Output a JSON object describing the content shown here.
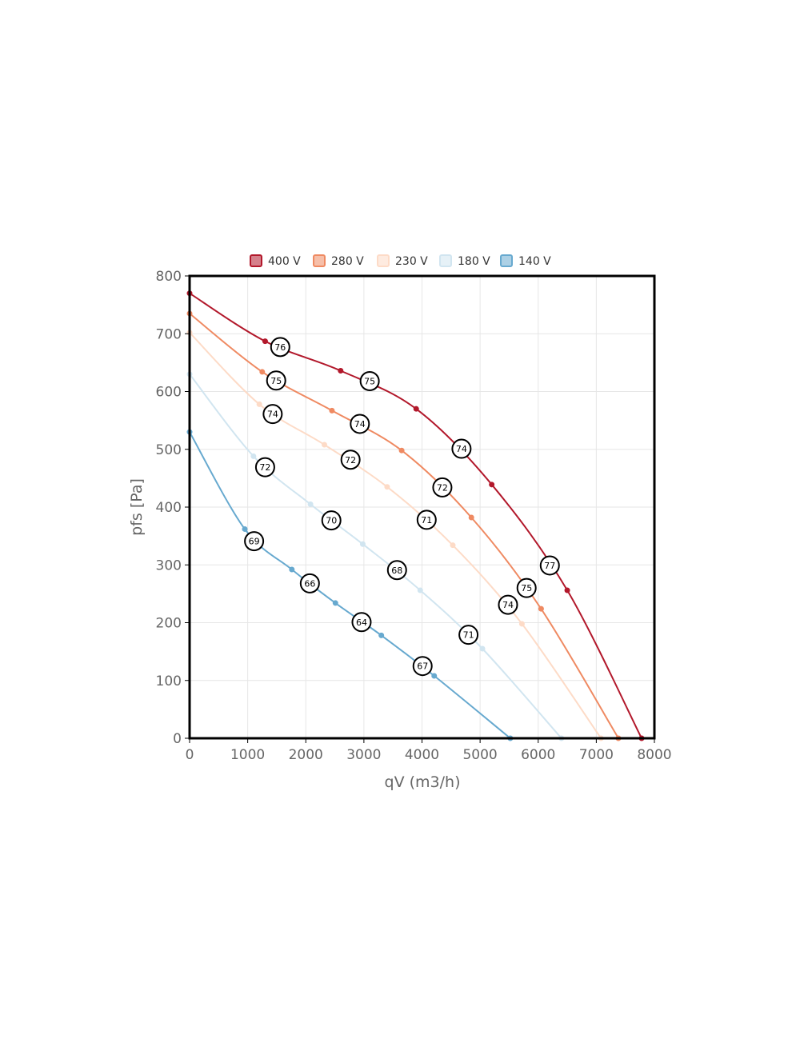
{
  "chart_data": {
    "type": "line",
    "title": "",
    "xlabel": "qV (m3/h)",
    "ylabel": "pfs [Pa]",
    "xlim": [
      0,
      8000
    ],
    "ylim": [
      0,
      800
    ],
    "xticks": [
      "0",
      "1000",
      "2000",
      "3000",
      "4000",
      "5000",
      "6000",
      "7000",
      "8000"
    ],
    "yticks": [
      "0",
      "100",
      "200",
      "300",
      "400",
      "500",
      "600",
      "700",
      "800"
    ],
    "grid": true,
    "legend_position": "top-center",
    "series": [
      {
        "name": "400 V",
        "color": "#b2182b",
        "points": [
          [
            0,
            770
          ],
          [
            1300,
            687
          ],
          [
            2600,
            636
          ],
          [
            3900,
            570
          ],
          [
            5200,
            439
          ],
          [
            6500,
            256
          ],
          [
            7780,
            0
          ]
        ],
        "labels": [
          {
            "x": 1560,
            "y": 677,
            "text": "76"
          },
          {
            "x": 3100,
            "y": 618,
            "text": "75"
          },
          {
            "x": 4680,
            "y": 501,
            "text": "74"
          },
          {
            "x": 6200,
            "y": 299,
            "text": "77"
          }
        ]
      },
      {
        "name": "280 V",
        "color": "#ef8a62",
        "points": [
          [
            0,
            735
          ],
          [
            1250,
            634
          ],
          [
            2450,
            567
          ],
          [
            3650,
            498
          ],
          [
            4850,
            382
          ],
          [
            6050,
            224
          ],
          [
            7380,
            0
          ]
        ],
        "labels": [
          {
            "x": 1490,
            "y": 619,
            "text": "75"
          },
          {
            "x": 2930,
            "y": 544,
            "text": "74"
          },
          {
            "x": 4350,
            "y": 434,
            "text": "72"
          },
          {
            "x": 5800,
            "y": 260,
            "text": "75"
          }
        ]
      },
      {
        "name": "230 V",
        "color": "#fddbc7",
        "points": [
          [
            0,
            702
          ],
          [
            1200,
            578
          ],
          [
            2320,
            508
          ],
          [
            3400,
            435
          ],
          [
            4530,
            334
          ],
          [
            5720,
            198
          ],
          [
            7080,
            0
          ]
        ],
        "labels": [
          {
            "x": 1430,
            "y": 561,
            "text": "74"
          },
          {
            "x": 2770,
            "y": 482,
            "text": "72"
          },
          {
            "x": 4080,
            "y": 378,
            "text": "71"
          },
          {
            "x": 5480,
            "y": 231,
            "text": "74"
          }
        ]
      },
      {
        "name": "180 V",
        "color": "#d1e5f0",
        "points": [
          [
            0,
            630
          ],
          [
            1100,
            488
          ],
          [
            2080,
            405
          ],
          [
            2980,
            336
          ],
          [
            3970,
            256
          ],
          [
            5040,
            155
          ],
          [
            6400,
            0
          ]
        ],
        "labels": [
          {
            "x": 1300,
            "y": 469,
            "text": "72"
          },
          {
            "x": 2440,
            "y": 377,
            "text": "70"
          },
          {
            "x": 3570,
            "y": 291,
            "text": "68"
          },
          {
            "x": 4800,
            "y": 179,
            "text": "71"
          }
        ]
      },
      {
        "name": "140 V",
        "color": "#67a9cf",
        "points": [
          [
            0,
            530
          ],
          [
            950,
            362
          ],
          [
            1760,
            292
          ],
          [
            2510,
            234
          ],
          [
            3300,
            178
          ],
          [
            4210,
            108
          ],
          [
            5520,
            0
          ]
        ],
        "labels": [
          {
            "x": 1110,
            "y": 341,
            "text": "69"
          },
          {
            "x": 2070,
            "y": 268,
            "text": "66"
          },
          {
            "x": 2960,
            "y": 201,
            "text": "64"
          },
          {
            "x": 4010,
            "y": 125,
            "text": "67"
          }
        ]
      }
    ]
  }
}
